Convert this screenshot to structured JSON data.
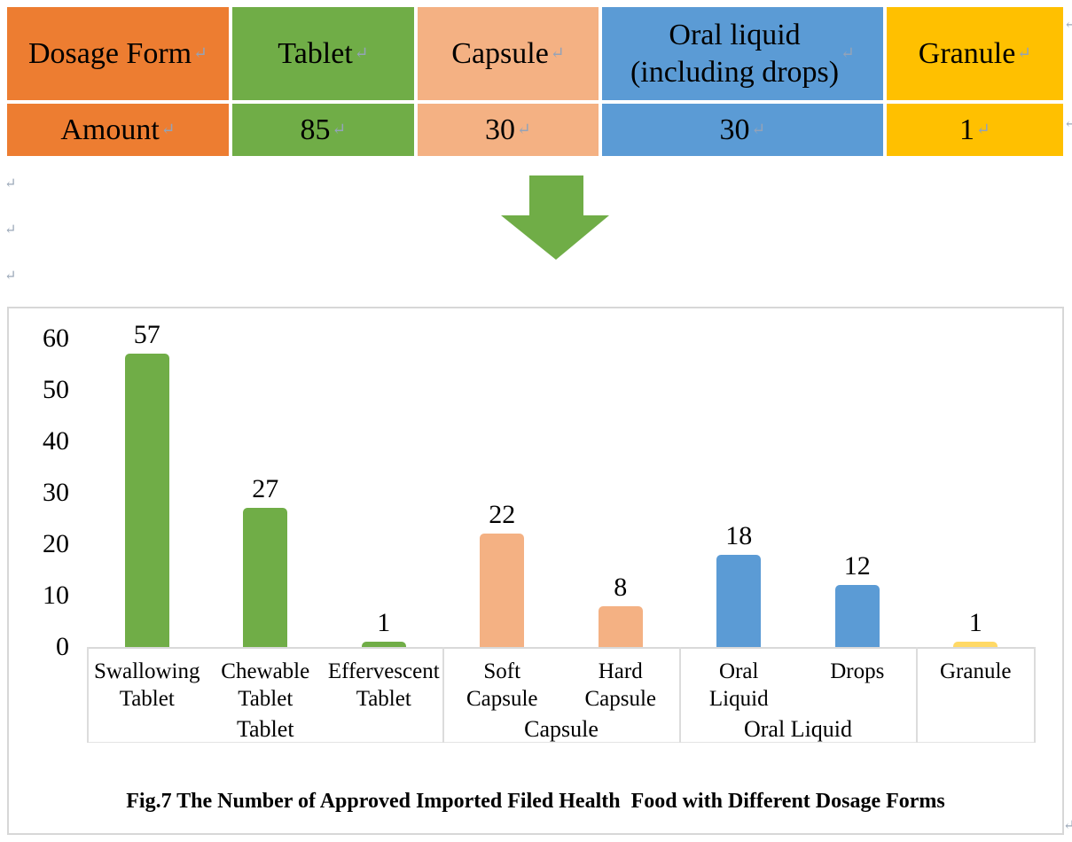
{
  "marks": {
    "paragraph": "↵"
  },
  "colors": {
    "orange": "#ED7D31",
    "green": "#70AD47",
    "peach": "#F4B183",
    "blue": "#5B9BD5",
    "gold": "#FFC000",
    "bar_yellow": "#FFD966",
    "arrow_green": "#70AD47",
    "axis_gray": "#d9d9d9"
  },
  "table": {
    "columns": [
      {
        "header": "Dosage Form",
        "amount": "Amount",
        "color": "#ED7D31"
      },
      {
        "header": "Tablet",
        "amount": "85",
        "color": "#70AD47"
      },
      {
        "header": "Capsule",
        "amount": "30",
        "color": "#F4B183"
      },
      {
        "header": "Oral liquid\n(including drops)",
        "amount": "30",
        "color": "#5B9BD5"
      },
      {
        "header": "Granule",
        "amount": "1",
        "color": "#FFC000"
      }
    ]
  },
  "chart_data": {
    "type": "bar",
    "title": "Fig.7 The Number of Approved Imported Filed Health  Food with Different Dosage Forms",
    "xlabel": "",
    "ylabel": "",
    "ylim": [
      0,
      60
    ],
    "yticks": [
      0,
      10,
      20,
      30,
      40,
      50,
      60
    ],
    "grid": false,
    "legend": false,
    "bar_style": "rounded-top",
    "groups": [
      {
        "label": "Tablet",
        "color": "#70AD47",
        "bars": [
          {
            "category": "Swallowing\nTablet",
            "value": 57
          },
          {
            "category": "Chewable\nTablet",
            "value": 27
          },
          {
            "category": "Effervescent\nTablet",
            "value": 1
          }
        ]
      },
      {
        "label": "Capsule",
        "color": "#F4B183",
        "bars": [
          {
            "category": "Soft\nCapsule",
            "value": 22
          },
          {
            "category": "Hard\nCapsule",
            "value": 8
          }
        ]
      },
      {
        "label": "Oral Liquid",
        "color": "#5B9BD5",
        "bars": [
          {
            "category": "Oral\nLiquid",
            "value": 18
          },
          {
            "category": "Drops",
            "value": 12
          }
        ]
      },
      {
        "label": "",
        "color": "#FFD966",
        "bars": [
          {
            "category": "Granule",
            "value": 1
          }
        ]
      }
    ]
  }
}
